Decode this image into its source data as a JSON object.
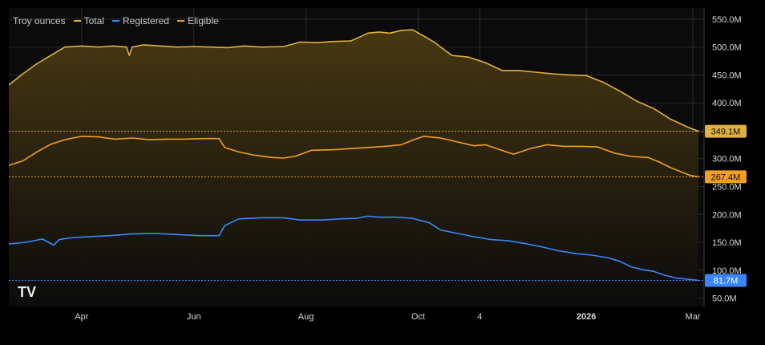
{
  "legend": {
    "unit_label": "Troy ounces",
    "items": [
      {
        "name": "Total",
        "color": "#e0b040"
      },
      {
        "name": "Registered",
        "color": "#3a86ff"
      },
      {
        "name": "Eligible",
        "color": "#f0a020"
      }
    ]
  },
  "logo": {
    "text": "TV"
  },
  "colors": {
    "background": "#000000",
    "plot_bg": "#0b0b0b",
    "grid": "#2a2a2a",
    "axis_text": "#d8d8d8",
    "total": "#e0b040",
    "registered": "#3a86ff",
    "eligible": "#f0a020",
    "fill_top": "#4a3a12"
  },
  "chart_data": {
    "type": "line",
    "title": "",
    "xlabel": "",
    "ylabel": "Troy ounces",
    "ylim": [
      35,
      570
    ],
    "y_ticks": [
      {
        "value": 550,
        "label": "550.0M"
      },
      {
        "value": 500,
        "label": "500.0M"
      },
      {
        "value": 450,
        "label": "450.0M"
      },
      {
        "value": 400,
        "label": "400.0M"
      },
      {
        "value": 300,
        "label": "300.0M"
      },
      {
        "value": 250,
        "label": "250.0M"
      },
      {
        "value": 200,
        "label": "200.0M"
      },
      {
        "value": 150,
        "label": "150.0M"
      },
      {
        "value": 100,
        "label": "100.0M"
      },
      {
        "value": 50,
        "label": "50.0M"
      }
    ],
    "x_ticks": [
      {
        "value": 2,
        "label": "Apr"
      },
      {
        "value": 4,
        "label": "Jun"
      },
      {
        "value": 6,
        "label": "Aug"
      },
      {
        "value": 8,
        "label": "Oct"
      },
      {
        "value": 9.1,
        "label": "4"
      },
      {
        "value": 11,
        "label": "2026"
      },
      {
        "value": 12.9,
        "label": "Mar"
      }
    ],
    "xlim": [
      0.7,
      13.1
    ],
    "series": [
      {
        "name": "Total",
        "color": "#e0b040",
        "last_value": 349.1,
        "last_label": "349.1M",
        "x": [
          0.7,
          0.95,
          1.2,
          1.45,
          1.7,
          2.0,
          2.3,
          2.55,
          2.8,
          2.85,
          2.9,
          3.1,
          3.4,
          3.7,
          4.0,
          4.3,
          4.6,
          4.9,
          5.2,
          5.6,
          5.9,
          6.2,
          6.5,
          6.8,
          7.0,
          7.1,
          7.3,
          7.5,
          7.7,
          7.9,
          8.1,
          8.3,
          8.6,
          8.9,
          9.2,
          9.5,
          9.8,
          10.1,
          10.4,
          10.7,
          11.0,
          11.3,
          11.6,
          11.9,
          12.2,
          12.5,
          12.8,
          13.0
        ],
        "values": [
          432,
          452,
          470,
          485,
          500,
          502,
          500,
          502,
          500,
          485,
          500,
          504,
          502,
          500,
          501,
          500,
          499,
          502,
          500,
          501,
          509,
          508,
          510,
          511,
          520,
          525,
          527,
          525,
          530,
          531,
          520,
          508,
          485,
          482,
          472,
          458,
          458,
          455,
          452,
          450,
          449,
          437,
          421,
          403,
          390,
          371,
          357,
          349.1
        ]
      },
      {
        "name": "Eligible",
        "color": "#f0a020",
        "last_value": 267.4,
        "last_label": "267.4M",
        "x": [
          0.7,
          0.95,
          1.2,
          1.45,
          1.7,
          2.0,
          2.3,
          2.6,
          2.9,
          3.2,
          3.5,
          3.8,
          4.2,
          4.45,
          4.55,
          4.8,
          5.1,
          5.4,
          5.6,
          5.8,
          6.1,
          6.5,
          6.8,
          7.1,
          7.4,
          7.7,
          7.9,
          8.1,
          8.4,
          8.7,
          9.0,
          9.2,
          9.4,
          9.7,
          10.0,
          10.3,
          10.6,
          10.9,
          11.2,
          11.5,
          11.8,
          12.1,
          12.3,
          12.5,
          12.7,
          12.85,
          13.0
        ],
        "values": [
          288,
          296,
          312,
          326,
          334,
          340,
          339,
          335,
          337,
          334,
          335,
          335,
          336,
          336,
          320,
          312,
          306,
          302,
          301,
          304,
          315,
          316,
          318,
          320,
          322,
          325,
          333,
          340,
          337,
          330,
          323,
          325,
          318,
          308,
          318,
          325,
          322,
          322,
          321,
          310,
          304,
          302,
          294,
          284,
          276,
          270,
          267.4
        ]
      },
      {
        "name": "Registered",
        "color": "#3a86ff",
        "last_value": 81.7,
        "last_label": "81.7M",
        "x": [
          0.7,
          1.0,
          1.3,
          1.5,
          1.6,
          1.8,
          2.1,
          2.5,
          2.9,
          3.3,
          3.7,
          4.1,
          4.45,
          4.55,
          4.8,
          5.2,
          5.6,
          5.9,
          6.3,
          6.6,
          6.9,
          7.1,
          7.3,
          7.6,
          7.9,
          8.2,
          8.4,
          8.7,
          9.0,
          9.3,
          9.6,
          9.9,
          10.2,
          10.5,
          10.8,
          11.1,
          11.4,
          11.6,
          11.8,
          12.0,
          12.2,
          12.4,
          12.6,
          12.8,
          13.0
        ],
        "values": [
          147,
          150,
          156,
          145,
          155,
          158,
          160,
          162,
          165,
          166,
          164,
          162,
          162,
          180,
          192,
          194,
          194,
          190,
          190,
          192,
          193,
          197,
          195,
          195,
          193,
          185,
          172,
          166,
          160,
          155,
          153,
          148,
          142,
          135,
          130,
          127,
          122,
          116,
          106,
          101,
          98,
          91,
          86,
          84,
          81.7
        ]
      }
    ]
  }
}
